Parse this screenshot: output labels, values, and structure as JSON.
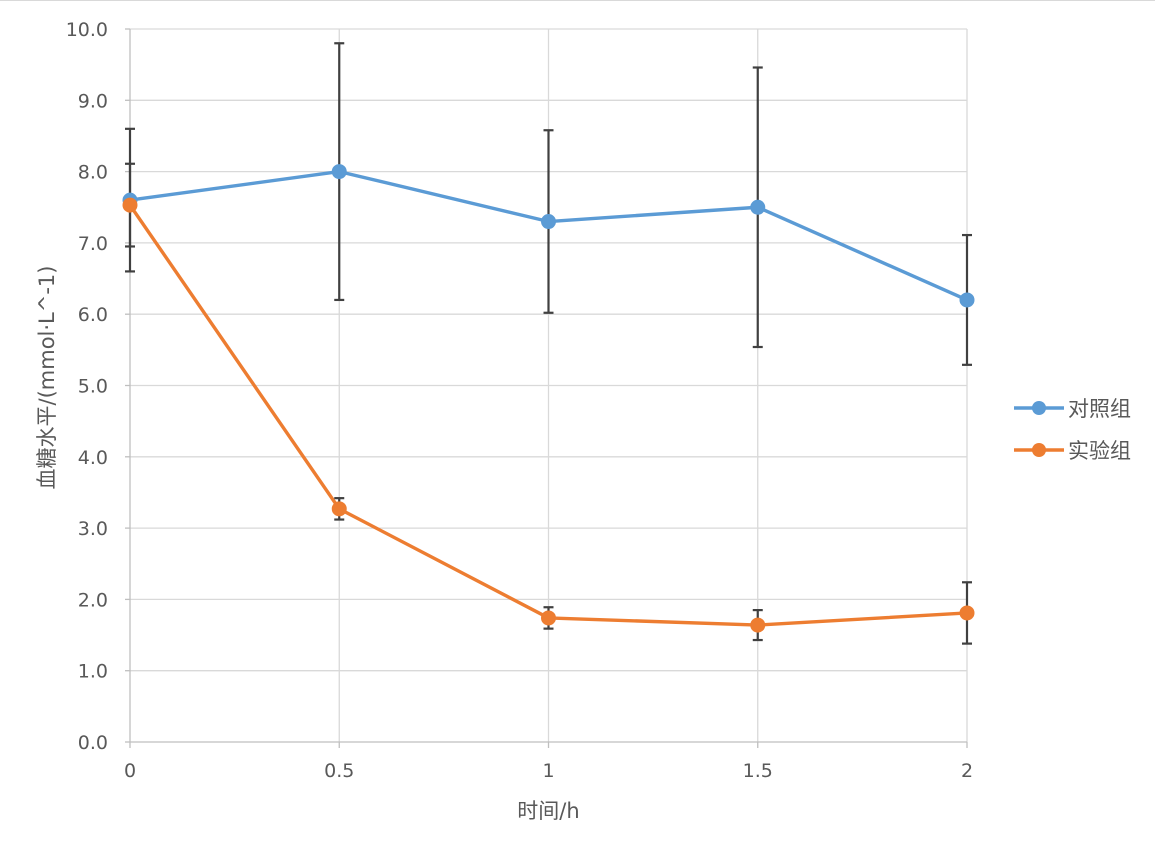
{
  "chart_data": {
    "type": "line",
    "title": "",
    "xlabel": "时间/h",
    "ylabel": "血糖水平/(mmol·L^-1)",
    "x": [
      0,
      0.5,
      1,
      1.5,
      2
    ],
    "x_tick_labels": [
      "0",
      "0.5",
      "1",
      "1.5",
      "2"
    ],
    "ylim": [
      0,
      10
    ],
    "y_tick_labels": [
      "0.0",
      "1.0",
      "2.0",
      "3.0",
      "4.0",
      "5.0",
      "6.0",
      "7.0",
      "8.0",
      "9.0",
      "10.0"
    ],
    "grid": true,
    "legend_position": "right",
    "series": [
      {
        "name": "对照组",
        "color": "#5b9bd5",
        "values": [
          7.6,
          8.0,
          7.3,
          7.5,
          6.2
        ],
        "error": [
          1.0,
          1.8,
          1.28,
          1.96,
          0.91
        ]
      },
      {
        "name": "实验组",
        "color": "#ed7d31",
        "values": [
          7.53,
          3.27,
          1.74,
          1.64,
          1.81
        ],
        "error": [
          0.58,
          0.15,
          0.15,
          0.21,
          0.43
        ]
      }
    ]
  }
}
